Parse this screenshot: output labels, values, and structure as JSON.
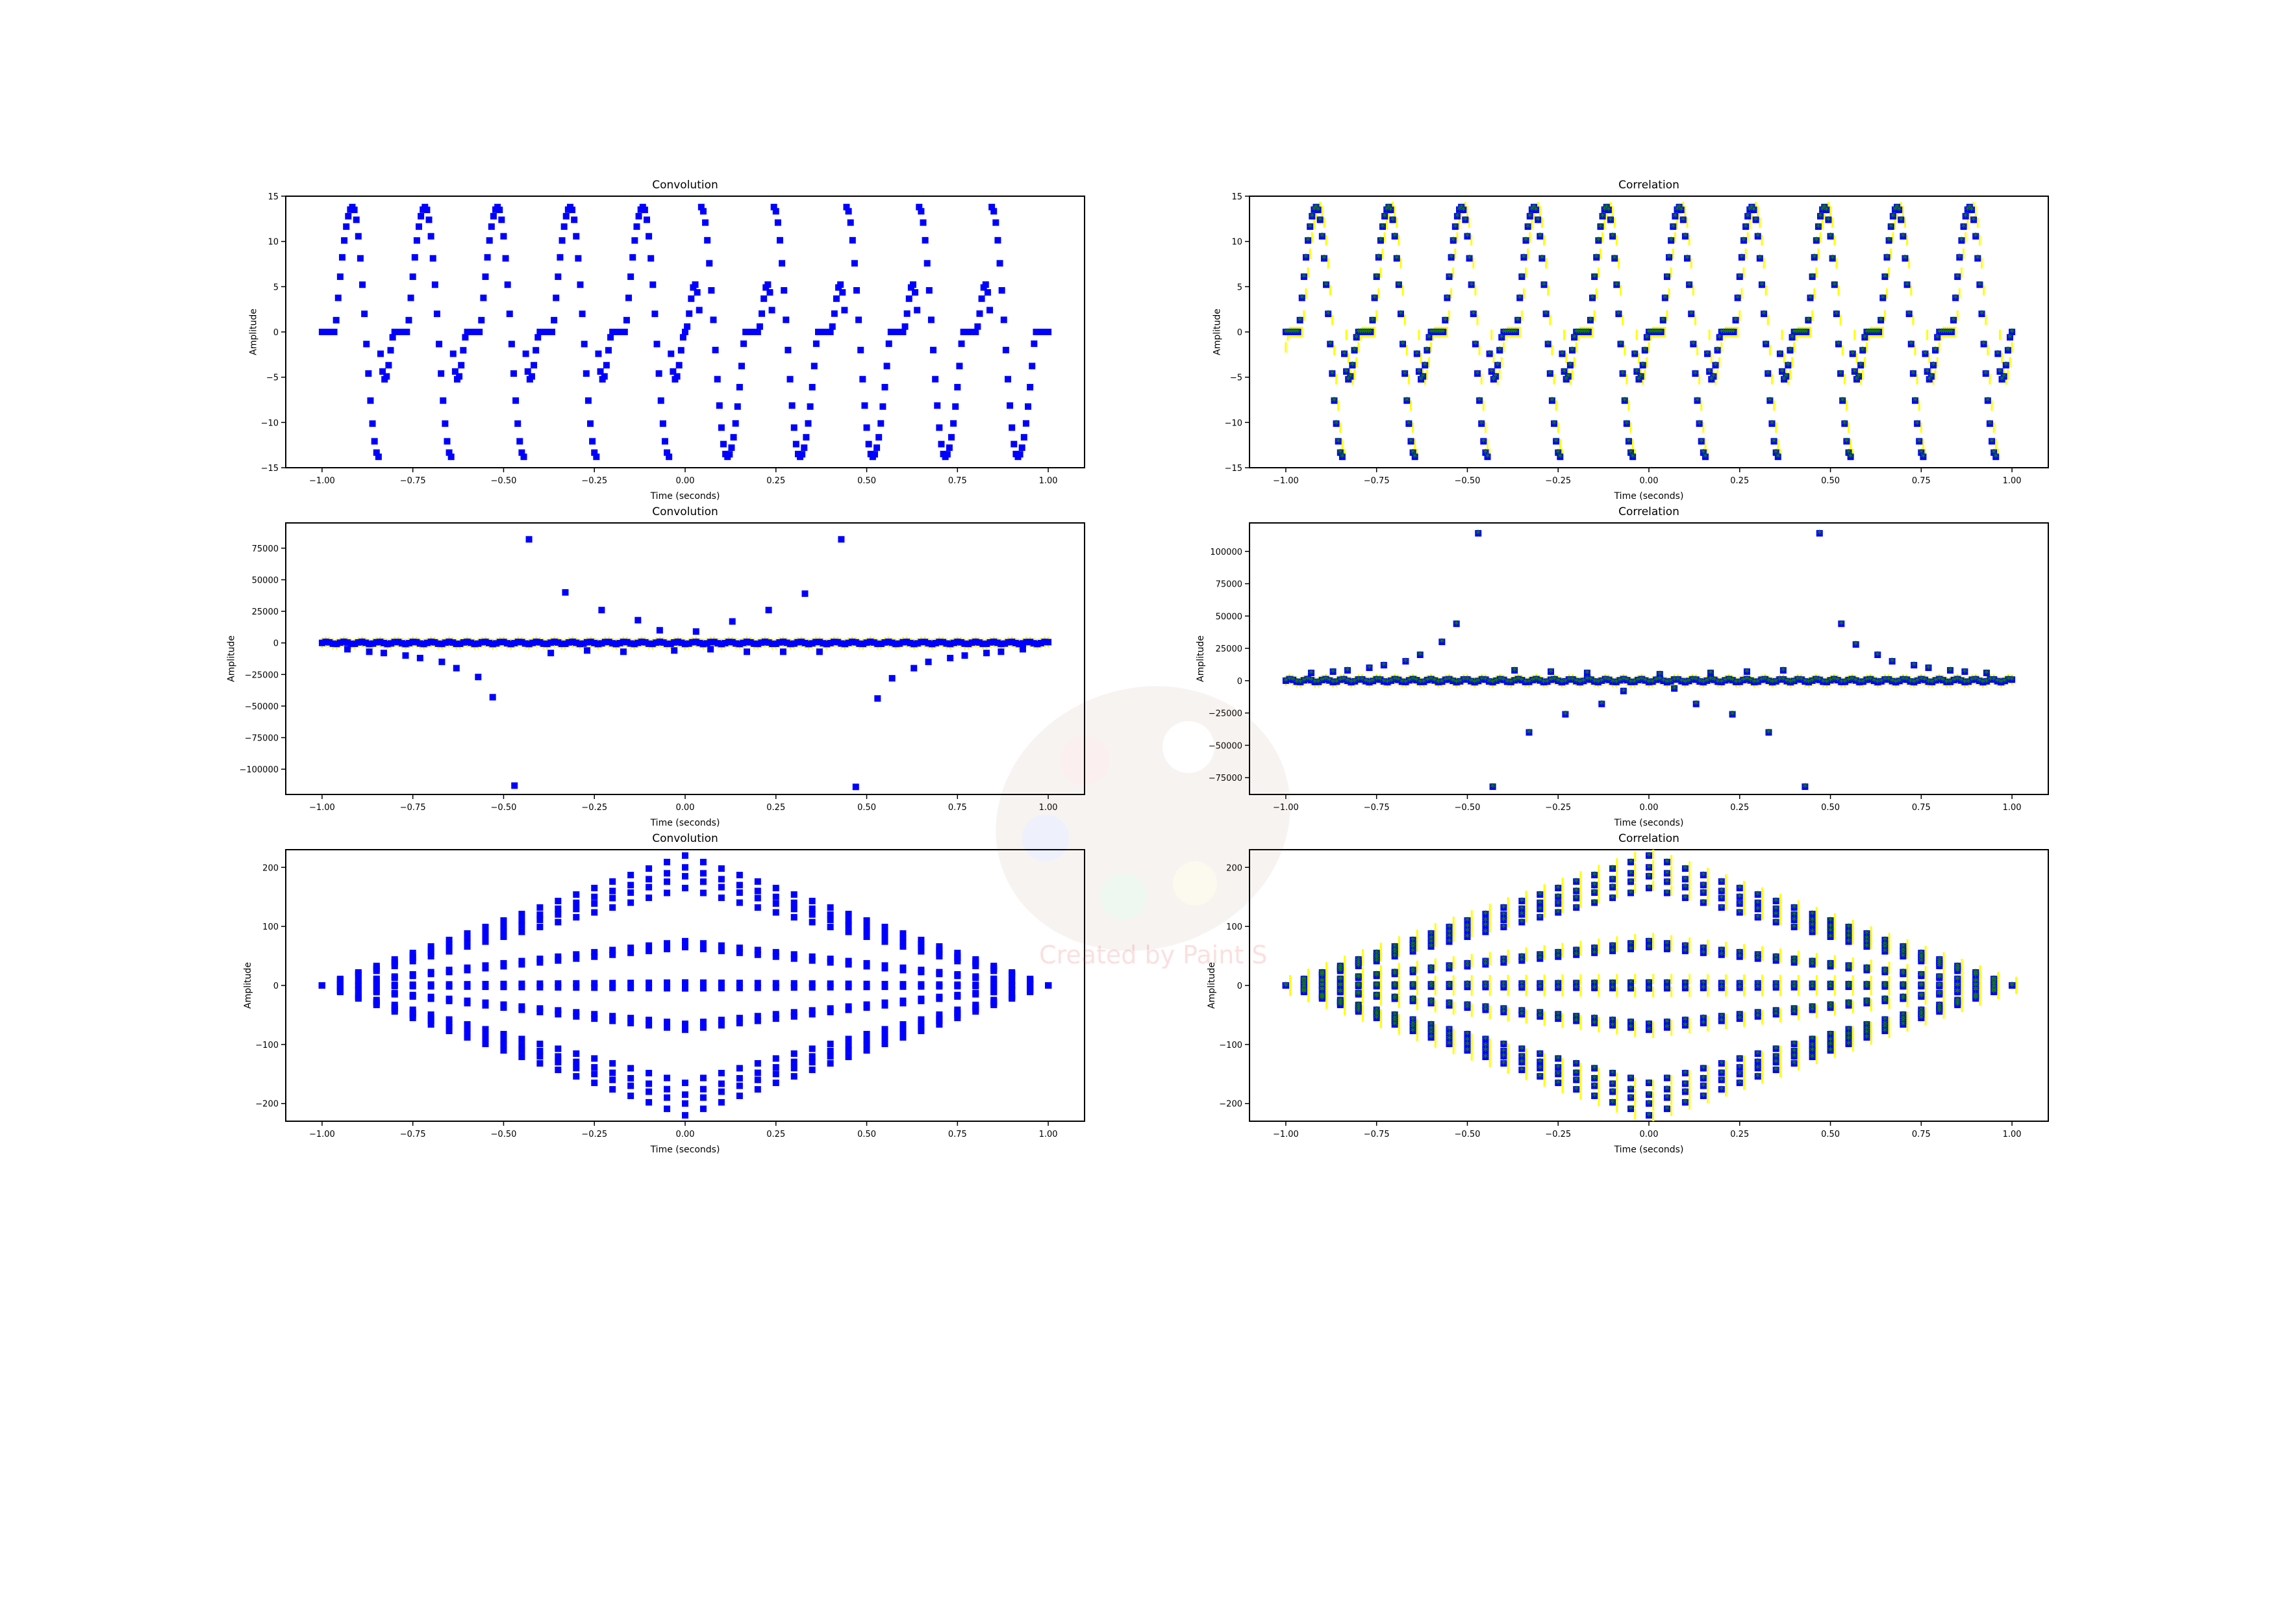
{
  "watermark": {
    "text": "Created by Paint S"
  },
  "chart_data": [
    {
      "type": "scatter",
      "title": "Convolution",
      "xlabel": "Time (seconds)",
      "ylabel": "Amplitude",
      "xlim": [
        -1.1,
        1.1
      ],
      "ylim": [
        -15,
        15
      ],
      "xticks": [
        "−1.00",
        "−0.75",
        "−0.50",
        "−0.25",
        "0.00",
        "0.25",
        "0.50",
        "0.75",
        "1.00"
      ],
      "xtick_values": [
        -1,
        -0.75,
        -0.5,
        -0.25,
        0,
        0.25,
        0.5,
        0.75,
        1
      ],
      "yticks": [
        "−15",
        "−10",
        "−5",
        "0",
        "5",
        "10",
        "15"
      ],
      "ytick_values": [
        -15,
        -10,
        -5,
        0,
        5,
        10,
        15
      ],
      "grid": false,
      "series": [
        {
          "color": "#0000ff",
          "marker": "square",
          "shape": "periodic-wave",
          "period": 0.2,
          "amplitude": 13.8,
          "x_range": [
            -1,
            1
          ],
          "symmetry": "odd"
        }
      ]
    },
    {
      "type": "scatter",
      "title": "Correlation",
      "xlabel": "Time (seconds)",
      "ylabel": "Amplitude",
      "xlim": [
        -1.1,
        1.1
      ],
      "ylim": [
        -15,
        15
      ],
      "xticks": [
        "−1.00",
        "−0.75",
        "−0.50",
        "−0.25",
        "0.00",
        "0.25",
        "0.50",
        "0.75",
        "1.00"
      ],
      "xtick_values": [
        -1,
        -0.75,
        -0.5,
        -0.25,
        0,
        0.25,
        0.5,
        0.75,
        1
      ],
      "yticks": [
        "−15",
        "−10",
        "−5",
        "0",
        "5",
        "10",
        "15"
      ],
      "ytick_values": [
        -15,
        -10,
        -5,
        0,
        5,
        10,
        15
      ],
      "grid": false,
      "series": [
        {
          "color": "#ffff00",
          "marker": "line",
          "shape": "periodic-wave",
          "period": 0.2,
          "amplitude": 13.8,
          "x_range": [
            -1,
            1
          ],
          "symmetry": "even",
          "x_shift": 0.01
        },
        {
          "color": "#0000ff",
          "marker": "square",
          "shape": "periodic-wave",
          "period": 0.2,
          "amplitude": 13.8,
          "x_range": [
            -1,
            1
          ],
          "symmetry": "even"
        },
        {
          "color": "#117711",
          "marker": "star",
          "shape": "periodic-wave",
          "period": 0.2,
          "amplitude": 13.8,
          "x_range": [
            -1,
            1
          ],
          "symmetry": "even"
        }
      ]
    },
    {
      "type": "scatter",
      "title": "Convolution",
      "xlabel": "Time (seconds)",
      "ylabel": "Amplitude",
      "xlim": [
        -1.1,
        1.1
      ],
      "ylim": [
        -120000,
        95000
      ],
      "xticks": [
        "−1.00",
        "−0.75",
        "−0.50",
        "−0.25",
        "0.00",
        "0.25",
        "0.50",
        "0.75",
        "1.00"
      ],
      "xtick_values": [
        -1,
        -0.75,
        -0.5,
        -0.25,
        0,
        0.25,
        0.5,
        0.75,
        1
      ],
      "yticks": [
        "−100000",
        "−75000",
        "−50000",
        "−25000",
        "0",
        "25000",
        "50000",
        "75000"
      ],
      "ytick_values": [
        -100000,
        -75000,
        -50000,
        -25000,
        0,
        25000,
        50000,
        75000
      ],
      "grid": false,
      "baseline_band": 1500,
      "outliers": [
        [
          -0.47,
          -113000
        ],
        [
          -0.43,
          82000
        ],
        [
          -0.33,
          40000
        ],
        [
          -0.23,
          26000
        ],
        [
          -0.13,
          18000
        ],
        [
          -0.53,
          -43000
        ],
        [
          -0.57,
          -27000
        ],
        [
          -0.63,
          -20000
        ],
        [
          -0.67,
          -15000
        ],
        [
          -0.73,
          -12000
        ],
        [
          -0.77,
          -10000
        ],
        [
          -0.83,
          -8000
        ],
        [
          -0.87,
          -7000
        ],
        [
          -0.93,
          -5000
        ],
        [
          -0.37,
          -8000
        ],
        [
          -0.27,
          -6000
        ],
        [
          -0.17,
          -7000
        ],
        [
          -0.07,
          10000
        ],
        [
          -0.03,
          -6000
        ],
        [
          0.03,
          9000
        ],
        [
          0.07,
          -5000
        ],
        [
          0.13,
          17000
        ],
        [
          0.17,
          -7000
        ],
        [
          0.23,
          26000
        ],
        [
          0.27,
          -7000
        ],
        [
          0.33,
          39000
        ],
        [
          0.37,
          -7000
        ],
        [
          0.43,
          82000
        ],
        [
          0.47,
          -114000
        ],
        [
          0.53,
          -44000
        ],
        [
          0.57,
          -28000
        ],
        [
          0.63,
          -20000
        ],
        [
          0.67,
          -15000
        ],
        [
          0.73,
          -12000
        ],
        [
          0.77,
          -10000
        ],
        [
          0.83,
          -8000
        ],
        [
          0.87,
          -7000
        ],
        [
          0.93,
          -5000
        ]
      ],
      "series": [
        {
          "color": "#ffff00",
          "marker": "line"
        },
        {
          "color": "#0000ff",
          "marker": "square"
        }
      ]
    },
    {
      "type": "scatter",
      "title": "Correlation",
      "xlabel": "Time (seconds)",
      "ylabel": "Amplitude",
      "xlim": [
        -1.1,
        1.1
      ],
      "ylim": [
        -88000,
        122000
      ],
      "xticks": [
        "−1.00",
        "−0.75",
        "−0.50",
        "−0.25",
        "0.00",
        "0.25",
        "0.50",
        "0.75",
        "1.00"
      ],
      "xtick_values": [
        -1,
        -0.75,
        -0.5,
        -0.25,
        0,
        0.25,
        0.5,
        0.75,
        1
      ],
      "yticks": [
        "−75000",
        "−50000",
        "−25000",
        "0",
        "25000",
        "50000",
        "75000",
        "100000"
      ],
      "ytick_values": [
        -75000,
        -50000,
        -25000,
        0,
        25000,
        50000,
        75000,
        100000
      ],
      "grid": false,
      "baseline_band": 2000,
      "outliers": [
        [
          -0.47,
          114000
        ],
        [
          -0.53,
          44000
        ],
        [
          -0.57,
          30000
        ],
        [
          -0.63,
          20000
        ],
        [
          -0.67,
          15000
        ],
        [
          -0.73,
          12000
        ],
        [
          -0.77,
          10000
        ],
        [
          -0.83,
          8000
        ],
        [
          -0.87,
          7000
        ],
        [
          -0.93,
          6000
        ],
        [
          -0.43,
          -82000
        ],
        [
          -0.33,
          -40000
        ],
        [
          -0.23,
          -26000
        ],
        [
          -0.13,
          -18000
        ],
        [
          -0.37,
          8000
        ],
        [
          -0.27,
          7000
        ],
        [
          -0.17,
          6000
        ],
        [
          -0.07,
          -8000
        ],
        [
          0.07,
          -6000
        ],
        [
          0.03,
          5000
        ],
        [
          0.13,
          -18000
        ],
        [
          0.23,
          -26000
        ],
        [
          0.33,
          -40000
        ],
        [
          0.43,
          -82000
        ],
        [
          0.47,
          114000
        ],
        [
          0.53,
          44000
        ],
        [
          0.57,
          28000
        ],
        [
          0.63,
          20000
        ],
        [
          0.67,
          15000
        ],
        [
          0.73,
          12000
        ],
        [
          0.77,
          10000
        ],
        [
          0.83,
          8000
        ],
        [
          0.87,
          7000
        ],
        [
          0.93,
          6000
        ],
        [
          0.17,
          6000
        ],
        [
          0.27,
          7000
        ],
        [
          0.37,
          8000
        ]
      ],
      "series": [
        {
          "color": "#ffff00",
          "marker": "line"
        },
        {
          "color": "#0000ff",
          "marker": "square"
        },
        {
          "color": "#117711",
          "marker": "star"
        }
      ]
    },
    {
      "type": "scatter",
      "title": "Convolution",
      "xlabel": "Time (seconds)",
      "ylabel": "Amplitude",
      "xlim": [
        -1.1,
        1.1
      ],
      "ylim": [
        -230,
        230
      ],
      "xticks": [
        "−1.00",
        "−0.75",
        "−0.50",
        "−0.25",
        "0.00",
        "0.25",
        "0.50",
        "0.75",
        "1.00"
      ],
      "xtick_values": [
        -1,
        -0.75,
        -0.5,
        -0.25,
        0,
        0.25,
        0.5,
        0.75,
        1
      ],
      "yticks": [
        "−200",
        "−100",
        "0",
        "100",
        "200"
      ],
      "ytick_values": [
        -200,
        -100,
        0,
        100,
        200
      ],
      "grid": false,
      "envelope_peaks": [
        220,
        200,
        185,
        165,
        75,
        65,
        5,
        -5,
        -65,
        -75,
        -165,
        -185,
        -200,
        -220
      ],
      "series": [
        {
          "color": "#0000ff",
          "marker": "square"
        }
      ]
    },
    {
      "type": "scatter",
      "title": "Correlation",
      "xlabel": "Time (seconds)",
      "ylabel": "Amplitude",
      "xlim": [
        -1.1,
        1.1
      ],
      "ylim": [
        -230,
        230
      ],
      "xticks": [
        "−1.00",
        "−0.75",
        "−0.50",
        "−0.25",
        "0.00",
        "0.25",
        "0.50",
        "0.75",
        "1.00"
      ],
      "xtick_values": [
        -1,
        -0.75,
        -0.5,
        -0.25,
        0,
        0.25,
        0.5,
        0.75,
        1
      ],
      "yticks": [
        "−200",
        "−100",
        "0",
        "100",
        "200"
      ],
      "ytick_values": [
        -200,
        -100,
        0,
        100,
        200
      ],
      "grid": false,
      "envelope_peaks": [
        220,
        200,
        185,
        165,
        75,
        65,
        5,
        -5,
        -65,
        -75,
        -165,
        -185,
        -200,
        -220
      ],
      "series": [
        {
          "color": "#ffff00",
          "marker": "line"
        },
        {
          "color": "#0000ff",
          "marker": "square"
        },
        {
          "color": "#117711",
          "marker": "star"
        }
      ]
    }
  ]
}
